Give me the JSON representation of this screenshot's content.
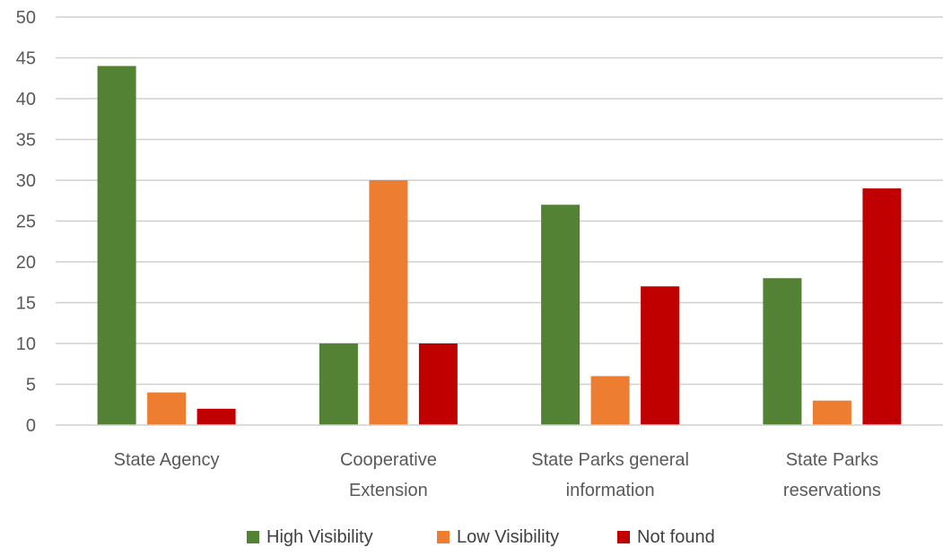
{
  "chart_data": {
    "type": "bar",
    "title": "",
    "xlabel": "",
    "ylabel": "",
    "ylim": [
      0,
      50
    ],
    "yticks": [
      0,
      5,
      10,
      15,
      20,
      25,
      30,
      35,
      40,
      45,
      50
    ],
    "grid": true,
    "legend_position": "bottom",
    "categories": [
      [
        "State Agency"
      ],
      [
        "Cooperative",
        "Extension"
      ],
      [
        "State Parks general",
        "information"
      ],
      [
        "State Parks",
        "reservations"
      ]
    ],
    "series": [
      {
        "name": "High Visibility",
        "color": "#548235",
        "values": [
          44,
          10,
          27,
          18
        ]
      },
      {
        "name": "Low Visibility",
        "color": "#ED7D31",
        "values": [
          4,
          30,
          6,
          3
        ]
      },
      {
        "name": "Not found",
        "color": "#C00000",
        "values": [
          2,
          10,
          17,
          29
        ]
      }
    ]
  }
}
